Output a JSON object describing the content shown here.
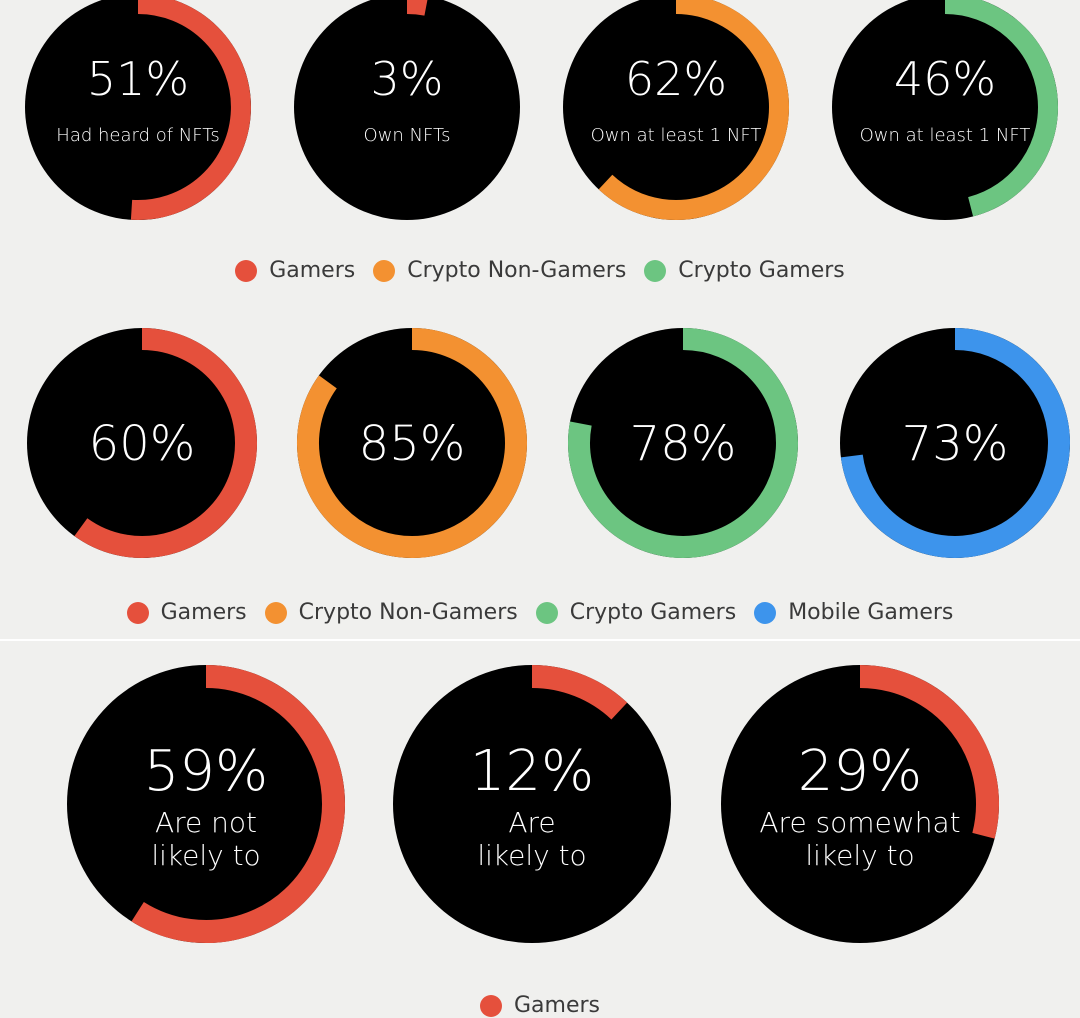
{
  "colors": {
    "background": "#f0f0ee",
    "disc": "#000000",
    "text": "#ffffff",
    "gamers": "#e5503c",
    "crypto_non_gamers": "#f39131",
    "crypto_gamers": "#6cc581",
    "mobile_gamers": "#3d94ec"
  },
  "legends": [
    {
      "items": [
        {
          "label": "Gamers",
          "color": "#e5503c"
        },
        {
          "label": "Crypto Non-Gamers",
          "color": "#f39131"
        },
        {
          "label": "Crypto Gamers",
          "color": "#6cc581"
        }
      ]
    },
    {
      "items": [
        {
          "label": "Gamers",
          "color": "#e5503c"
        },
        {
          "label": "Crypto Non-Gamers",
          "color": "#f39131"
        },
        {
          "label": "Crypto Gamers",
          "color": "#6cc581"
        },
        {
          "label": "Mobile Gamers",
          "color": "#3d94ec"
        }
      ]
    },
    {
      "items": [
        {
          "label": "Gamers",
          "color": "#e5503c"
        }
      ]
    }
  ],
  "chart_data": [
    {
      "type": "pie",
      "series": [
        {
          "name": "Gamers",
          "value": 51,
          "label": "51%",
          "caption": [
            "Had heard of NFTs"
          ],
          "color": "#e5503c"
        },
        {
          "name": "Gamers",
          "value": 3,
          "label": "3%",
          "caption": [
            "Own NFTs"
          ],
          "color": "#e5503c"
        },
        {
          "name": "Crypto Non-Gamers",
          "value": 62,
          "label": "62%",
          "caption": [
            "Own at least 1 NFT"
          ],
          "color": "#f39131"
        },
        {
          "name": "Crypto Gamers",
          "value": 46,
          "label": "46%",
          "caption": [
            "Own at least 1 NFT"
          ],
          "color": "#6cc581"
        }
      ]
    },
    {
      "type": "pie",
      "series": [
        {
          "name": "Gamers",
          "value": 60,
          "label": "60%",
          "caption": [],
          "color": "#e5503c"
        },
        {
          "name": "Crypto Non-Gamers",
          "value": 85,
          "label": "85%",
          "caption": [],
          "color": "#f39131"
        },
        {
          "name": "Crypto Gamers",
          "value": 78,
          "label": "78%",
          "caption": [],
          "color": "#6cc581"
        },
        {
          "name": "Mobile Gamers",
          "value": 73,
          "label": "73%",
          "caption": [],
          "color": "#3d94ec"
        }
      ]
    },
    {
      "type": "pie",
      "series": [
        {
          "name": "Gamers",
          "value": 59,
          "label": "59%",
          "caption": [
            "Are not",
            "likely to"
          ],
          "color": "#e5503c"
        },
        {
          "name": "Gamers",
          "value": 12,
          "label": "12%",
          "caption": [
            "Are",
            "likely to"
          ],
          "color": "#e5503c"
        },
        {
          "name": "Gamers",
          "value": 29,
          "label": "29%",
          "caption": [
            "Are somewhat",
            "likely to"
          ],
          "color": "#e5503c"
        }
      ]
    }
  ]
}
